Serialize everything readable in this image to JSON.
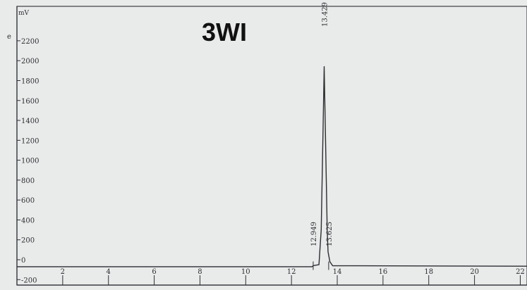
{
  "chart_data": {
    "type": "line",
    "y_unit": "mV",
    "margin_mark": "e",
    "annotation": "3WI",
    "ylim": [
      -200,
      2300
    ],
    "xlim": [
      0,
      22.3
    ],
    "y_ticks": [
      -200,
      0,
      200,
      400,
      600,
      800,
      1000,
      1200,
      1400,
      1600,
      1800,
      2000,
      2200
    ],
    "y_tick_labels": [
      "-200",
      "0",
      "200",
      "400",
      "600",
      "800",
      "1000",
      "1200",
      "1400",
      "1600",
      "1800",
      "2000",
      "2200"
    ],
    "x_ticks": [
      2,
      4,
      6,
      8,
      10,
      12,
      14,
      16,
      18,
      20,
      22
    ],
    "x_tick_labels": [
      "2",
      "4",
      "6",
      "8",
      "10",
      "12",
      "14",
      "16",
      "18",
      "20",
      "22"
    ],
    "grid": false,
    "series": [
      {
        "x": [
          0,
          12.9,
          12.95,
          13.05,
          13.2,
          13.3,
          13.38,
          13.43,
          13.48,
          13.56,
          13.6,
          13.63,
          13.68,
          13.8,
          22.3
        ],
        "y": [
          -70,
          -70,
          -60,
          -55,
          -50,
          300,
          1300,
          1940,
          1300,
          300,
          80,
          40,
          -20,
          -60,
          -65
        ]
      }
    ],
    "peaks": [
      {
        "label": "12.949",
        "x": 12.949
      },
      {
        "label": "13.429",
        "x": 13.429
      },
      {
        "label": "13.625",
        "x": 13.625
      }
    ]
  },
  "colors": {
    "paper": "#e9ebea",
    "ink": "#2b2d33",
    "title": "#111111"
  }
}
